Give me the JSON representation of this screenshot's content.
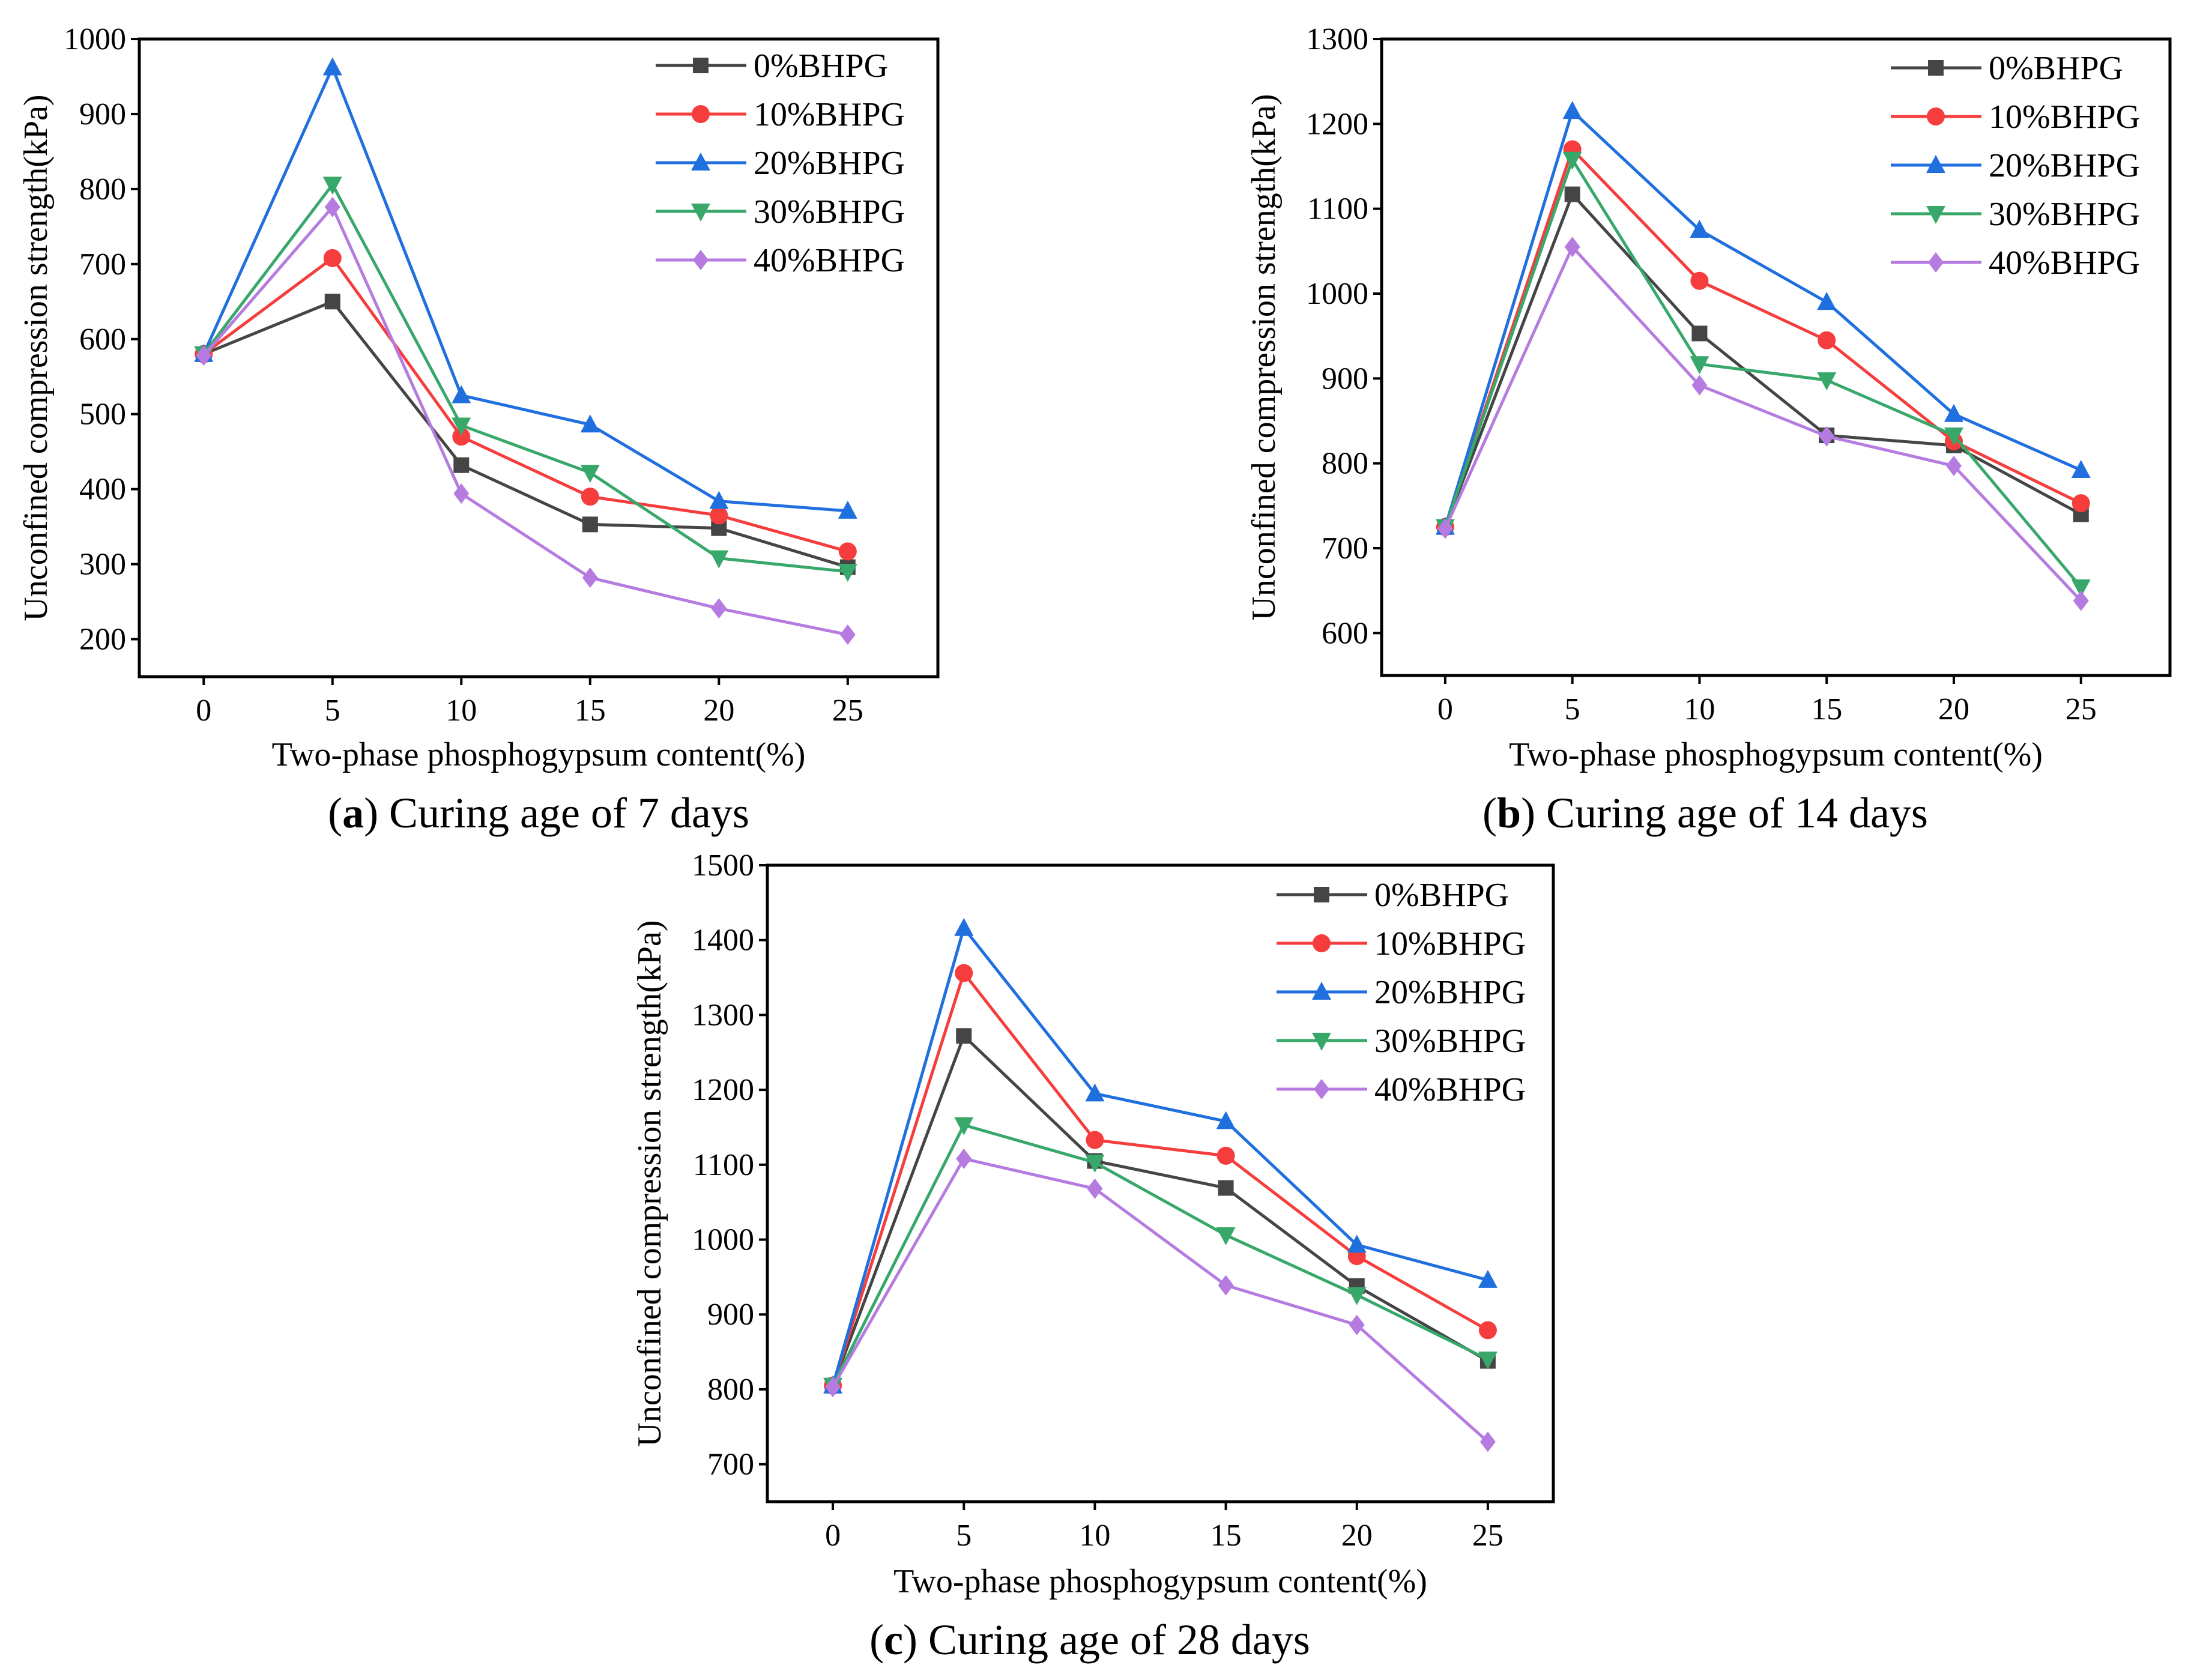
{
  "chart_data": [
    {
      "type": "line",
      "caption": {
        "letter": "a",
        "text": "Curing age of 7 days"
      },
      "xlabel": "Two-phase phosphogypsum content(%)",
      "ylabel": "Unconfined compression strength(kPa)",
      "x": [
        0,
        5,
        10,
        15,
        20,
        25
      ],
      "xlim": [
        -2.5,
        28.5
      ],
      "ylim": [
        150,
        1000
      ],
      "yticks": [
        200,
        300,
        400,
        500,
        600,
        700,
        800,
        900,
        1000
      ],
      "grid": false,
      "legend_position": "top-right",
      "series": [
        {
          "name": "0%BHPG",
          "color": "#454545",
          "marker": "square",
          "values": [
            580,
            650,
            432,
            353,
            348,
            296
          ]
        },
        {
          "name": "10%BHPG",
          "color": "#f53d3d",
          "marker": "circle",
          "values": [
            580,
            708,
            470,
            390,
            365,
            317
          ]
        },
        {
          "name": "20%BHPG",
          "color": "#1f6fdf",
          "marker": "triangle-up",
          "values": [
            580,
            962,
            525,
            486,
            384,
            371
          ]
        },
        {
          "name": "30%BHPG",
          "color": "#38a86a",
          "marker": "triangle-down",
          "values": [
            580,
            806,
            485,
            422,
            308,
            290
          ]
        },
        {
          "name": "40%BHPG",
          "color": "#b57be0",
          "marker": "diamond",
          "values": [
            578,
            776,
            394,
            282,
            241,
            206
          ]
        }
      ]
    },
    {
      "type": "line",
      "caption": {
        "letter": "b",
        "text": "Curing age of 14 days"
      },
      "xlabel": "Two-phase phosphogypsum content(%)",
      "ylabel": "Unconfined compression strength(kPa)",
      "x": [
        0,
        5,
        10,
        15,
        20,
        25
      ],
      "xlim": [
        -2.5,
        28.5
      ],
      "ylim": [
        550,
        1300
      ],
      "yticks": [
        600,
        700,
        800,
        900,
        1000,
        1100,
        1200,
        1300
      ],
      "grid": false,
      "legend_position": "top-right",
      "series": [
        {
          "name": "0%BHPG",
          "color": "#454545",
          "marker": "square",
          "values": [
            725,
            1117,
            953,
            833,
            821,
            740
          ]
        },
        {
          "name": "10%BHPG",
          "color": "#f53d3d",
          "marker": "circle",
          "values": [
            725,
            1170,
            1015,
            945,
            826,
            753
          ]
        },
        {
          "name": "20%BHPG",
          "color": "#1f6fdf",
          "marker": "triangle-up",
          "values": [
            725,
            1215,
            1075,
            990,
            858,
            792
          ]
        },
        {
          "name": "30%BHPG",
          "color": "#38a86a",
          "marker": "triangle-down",
          "values": [
            725,
            1158,
            917,
            898,
            833,
            654
          ]
        },
        {
          "name": "40%BHPG",
          "color": "#b57be0",
          "marker": "diamond",
          "values": [
            723,
            1055,
            892,
            832,
            797,
            638
          ]
        }
      ]
    },
    {
      "type": "line",
      "caption": {
        "letter": "c",
        "text": "Curing age of 28 days"
      },
      "xlabel": "Two-phase phosphogypsum content(%)",
      "ylabel": "Unconfined compression strength(kPa)",
      "x": [
        0,
        5,
        10,
        15,
        20,
        25
      ],
      "xlim": [
        -2.5,
        27.5
      ],
      "ylim": [
        650,
        1500
      ],
      "yticks": [
        700,
        800,
        900,
        1000,
        1100,
        1200,
        1300,
        1400,
        1500
      ],
      "grid": false,
      "legend_position": "top-right",
      "series": [
        {
          "name": "0%BHPG",
          "color": "#454545",
          "marker": "square",
          "values": [
            805,
            1272,
            1105,
            1069,
            938,
            838
          ]
        },
        {
          "name": "10%BHPG",
          "color": "#f53d3d",
          "marker": "circle",
          "values": [
            805,
            1356,
            1133,
            1112,
            978,
            879
          ]
        },
        {
          "name": "20%BHPG",
          "color": "#1f6fdf",
          "marker": "triangle-up",
          "values": [
            805,
            1416,
            1195,
            1158,
            993,
            946
          ]
        },
        {
          "name": "30%BHPG",
          "color": "#38a86a",
          "marker": "triangle-down",
          "values": [
            805,
            1153,
            1103,
            1006,
            926,
            840
          ]
        },
        {
          "name": "40%BHPG",
          "color": "#b57be0",
          "marker": "diamond",
          "values": [
            803,
            1108,
            1068,
            939,
            886,
            730
          ]
        }
      ]
    }
  ]
}
